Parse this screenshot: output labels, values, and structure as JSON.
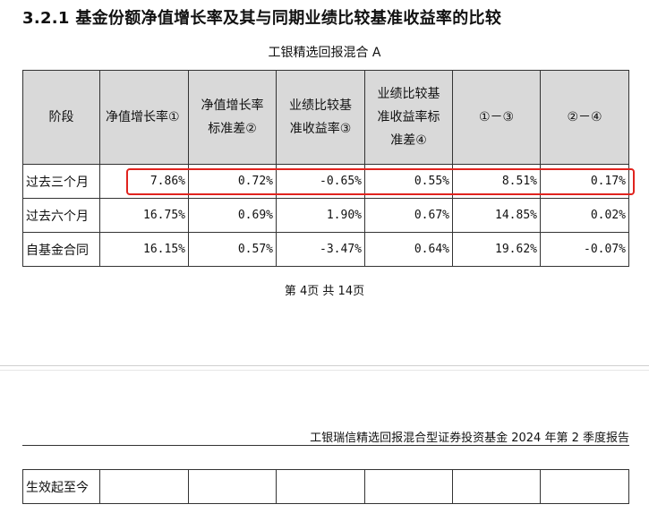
{
  "heading": "3.2.1 基金份额净值增长率及其与同期业绩比较基准收益率的比较",
  "subtitle": "工银精选回报混合 A",
  "table": {
    "headers": [
      [
        "阶段"
      ],
      [
        "净值增长率①"
      ],
      [
        "净值增长率",
        "标准差②"
      ],
      [
        "业绩比较基",
        "准收益率③"
      ],
      [
        "业绩比较基",
        "准收益率标",
        "准差④"
      ],
      [
        "①－③"
      ],
      [
        "②－④"
      ]
    ],
    "rows": [
      {
        "stage": "过去三个月",
        "values": [
          "7.86%",
          "0.72%",
          "-0.65%",
          "0.55%",
          "8.51%",
          "0.17%"
        ]
      },
      {
        "stage": "过去六个月",
        "values": [
          "16.75%",
          "0.69%",
          "1.90%",
          "0.67%",
          "14.85%",
          "0.02%"
        ]
      },
      {
        "stage": "自基金合同",
        "values": [
          "16.15%",
          "0.57%",
          "-3.47%",
          "0.64%",
          "19.62%",
          "-0.07%"
        ]
      }
    ]
  },
  "page_number": "第 4页 共 14页",
  "footer_title": "工银瑞信精选回报混合型证券投资基金 2024 年第 2 季度报告",
  "bottom_row_stage": "生效起至今",
  "highlight_color": "#e0231e"
}
